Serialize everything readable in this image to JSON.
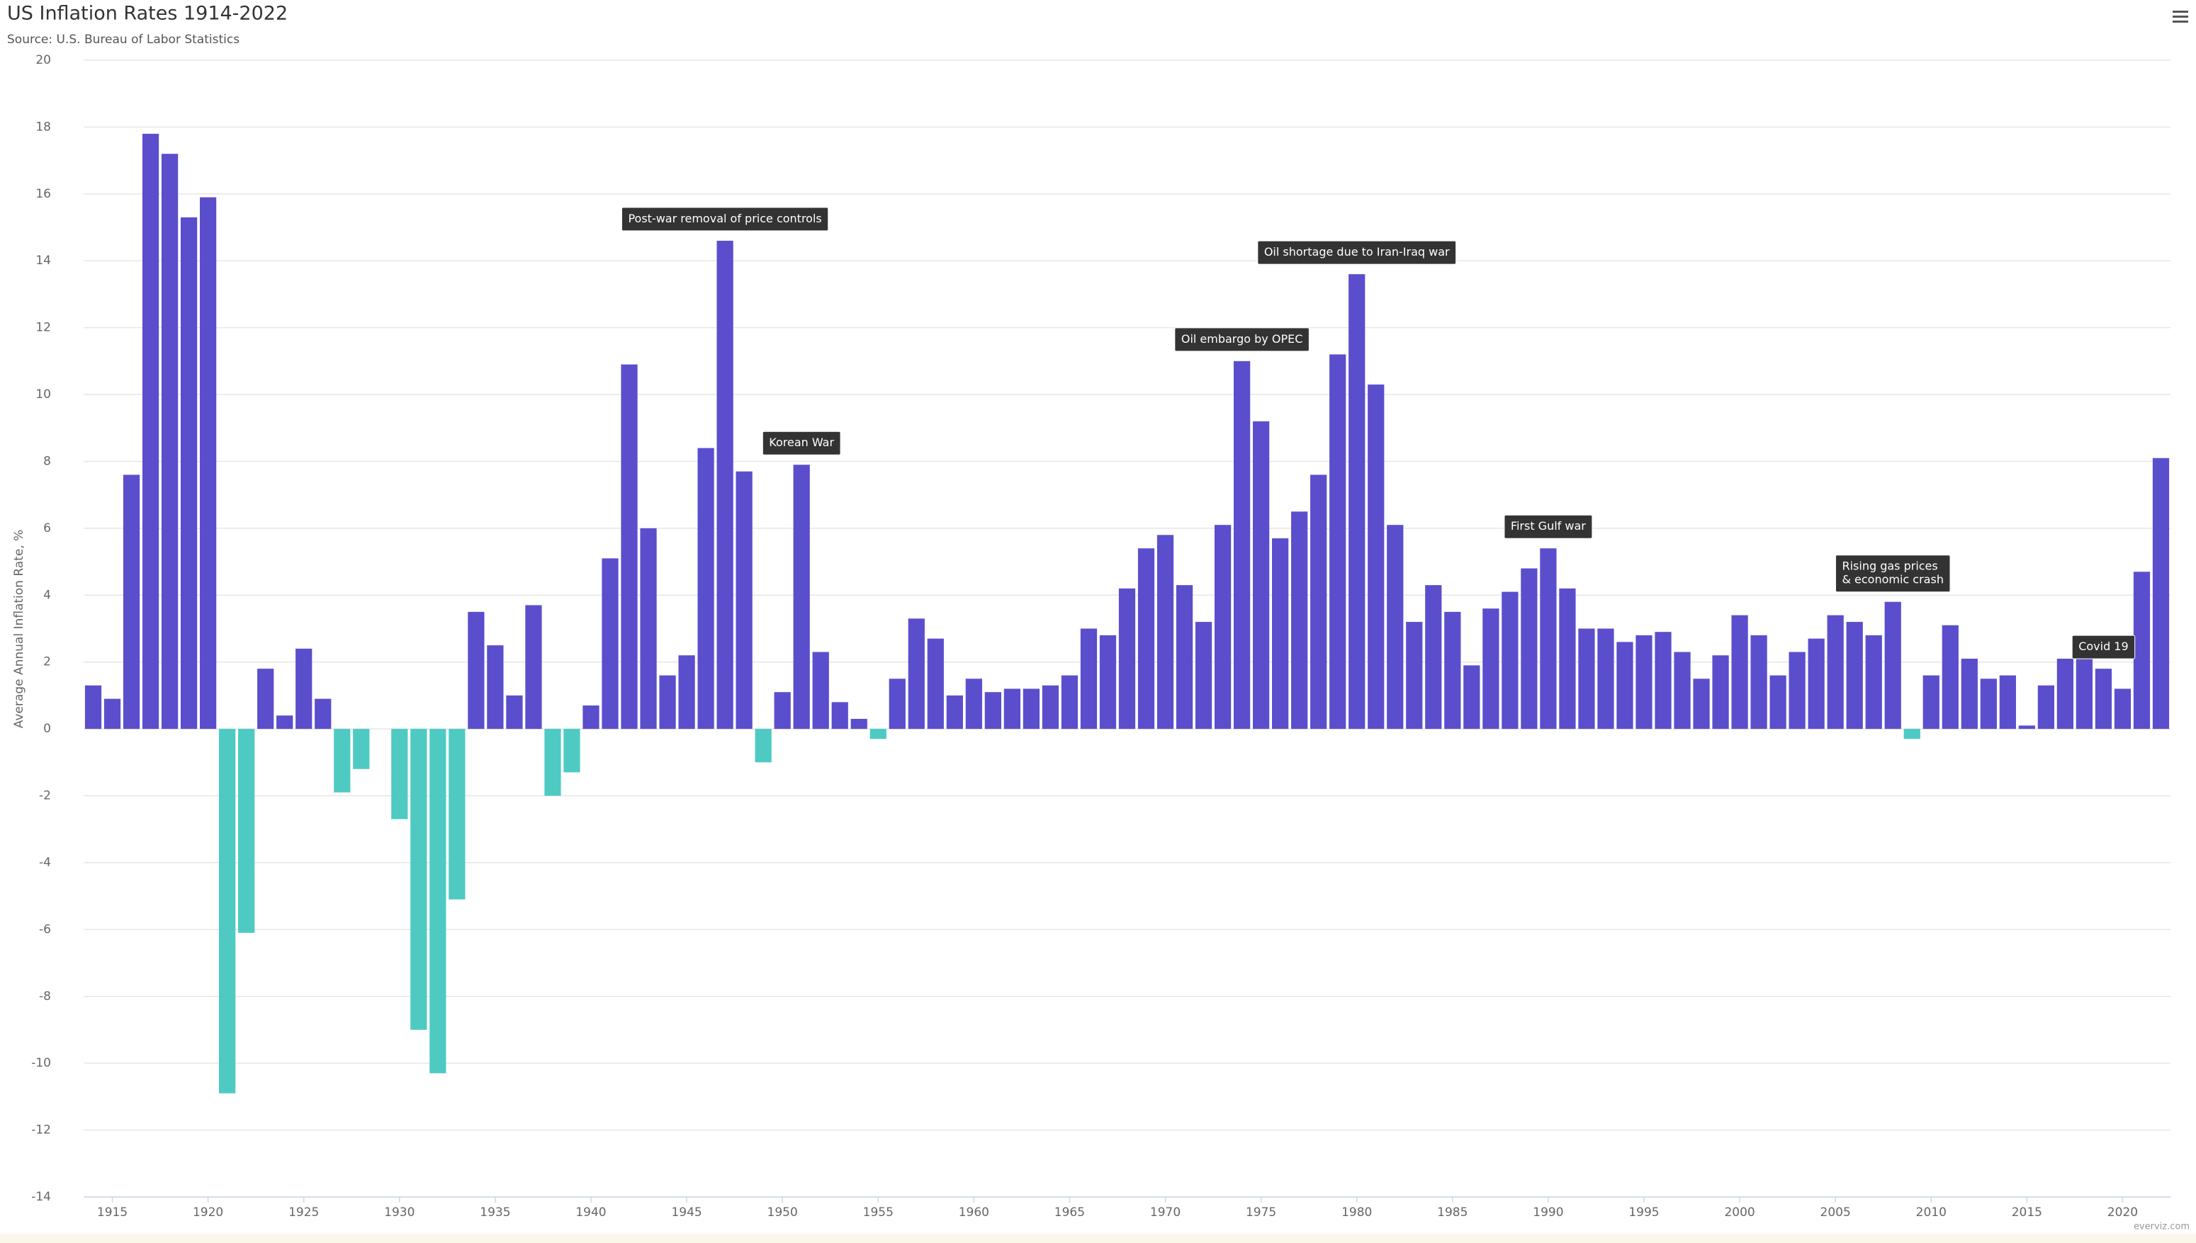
{
  "chart_data": {
    "type": "bar",
    "title": "US Inflation Rates 1914-2022",
    "subtitle": "Source: U.S. Bureau of Labor Statistics",
    "y_label": "Average Annual Inflation Rate, %",
    "credits": "everviz.com",
    "x": [
      1914,
      1915,
      1916,
      1917,
      1918,
      1919,
      1920,
      1921,
      1922,
      1923,
      1924,
      1925,
      1926,
      1927,
      1928,
      1929,
      1930,
      1931,
      1932,
      1933,
      1934,
      1935,
      1936,
      1937,
      1938,
      1939,
      1940,
      1941,
      1942,
      1943,
      1944,
      1945,
      1946,
      1947,
      1948,
      1949,
      1950,
      1951,
      1952,
      1953,
      1954,
      1955,
      1956,
      1957,
      1958,
      1959,
      1960,
      1961,
      1962,
      1963,
      1964,
      1965,
      1966,
      1967,
      1968,
      1969,
      1970,
      1971,
      1972,
      1973,
      1974,
      1975,
      1976,
      1977,
      1978,
      1979,
      1980,
      1981,
      1982,
      1983,
      1984,
      1985,
      1986,
      1987,
      1988,
      1989,
      1990,
      1991,
      1992,
      1993,
      1994,
      1995,
      1996,
      1997,
      1998,
      1999,
      2000,
      2001,
      2002,
      2003,
      2004,
      2005,
      2006,
      2007,
      2008,
      2009,
      2010,
      2011,
      2012,
      2013,
      2014,
      2015,
      2016,
      2017,
      2018,
      2019,
      2020,
      2021,
      2022
    ],
    "values": [
      1.3,
      0.9,
      7.6,
      17.8,
      17.2,
      15.3,
      15.9,
      -10.9,
      -6.1,
      1.8,
      0.4,
      2.4,
      0.9,
      -1.9,
      -1.2,
      0,
      -2.7,
      -9.0,
      -10.3,
      -5.1,
      3.5,
      2.5,
      1.0,
      3.7,
      -2.0,
      -1.3,
      0.7,
      5.1,
      10.9,
      6.0,
      1.6,
      2.2,
      8.4,
      14.6,
      7.7,
      -1.0,
      1.1,
      7.9,
      2.3,
      0.8,
      0.3,
      -0.3,
      1.5,
      3.3,
      2.7,
      1.0,
      1.5,
      1.1,
      1.2,
      1.2,
      1.3,
      1.6,
      3.0,
      2.8,
      4.2,
      5.4,
      5.8,
      4.3,
      3.2,
      6.1,
      11.0,
      9.2,
      5.7,
      6.5,
      7.6,
      11.2,
      13.6,
      10.3,
      6.1,
      3.2,
      4.3,
      3.5,
      1.9,
      3.6,
      4.1,
      4.8,
      5.4,
      4.2,
      3.0,
      3.0,
      2.6,
      2.8,
      2.9,
      2.3,
      1.5,
      2.2,
      3.4,
      2.8,
      1.6,
      2.3,
      2.7,
      3.4,
      3.2,
      2.8,
      3.8,
      -0.3,
      1.6,
      3.1,
      2.1,
      1.5,
      1.6,
      0.1,
      1.3,
      2.1,
      2.1,
      1.8,
      1.2,
      4.7,
      8.1
    ],
    "color": "#5b4ecc",
    "negative_color": "#4ecac3",
    "xlim": [
      1913.5,
      2022.5
    ],
    "xticks": [
      1915,
      1920,
      1925,
      1930,
      1935,
      1940,
      1945,
      1950,
      1955,
      1960,
      1965,
      1970,
      1975,
      1980,
      1985,
      1990,
      1995,
      2000,
      2005,
      2010,
      2015,
      2020
    ],
    "ylim": [
      -14,
      20
    ],
    "yticks": [
      -14,
      -12,
      -10,
      -8,
      -6,
      -4,
      -2,
      0,
      2,
      4,
      6,
      8,
      10,
      12,
      14,
      16,
      18,
      20
    ],
    "grid": true,
    "annotations": [
      {
        "x": 1947,
        "lines": [
          "Post-war removal of price controls"
        ]
      },
      {
        "x": 1951,
        "lines": [
          "Korean War"
        ]
      },
      {
        "x": 1974,
        "lines": [
          "Oil embargo by OPEC"
        ]
      },
      {
        "x": 1980,
        "lines": [
          "Oil shortage due to Iran-Iraq war"
        ]
      },
      {
        "x": 1990,
        "lines": [
          "First Gulf war"
        ]
      },
      {
        "x": 2008,
        "lines": [
          "Rising gas prices",
          "& economic crash"
        ]
      },
      {
        "x": 2019,
        "lines": [
          "Covid 19"
        ]
      }
    ]
  }
}
